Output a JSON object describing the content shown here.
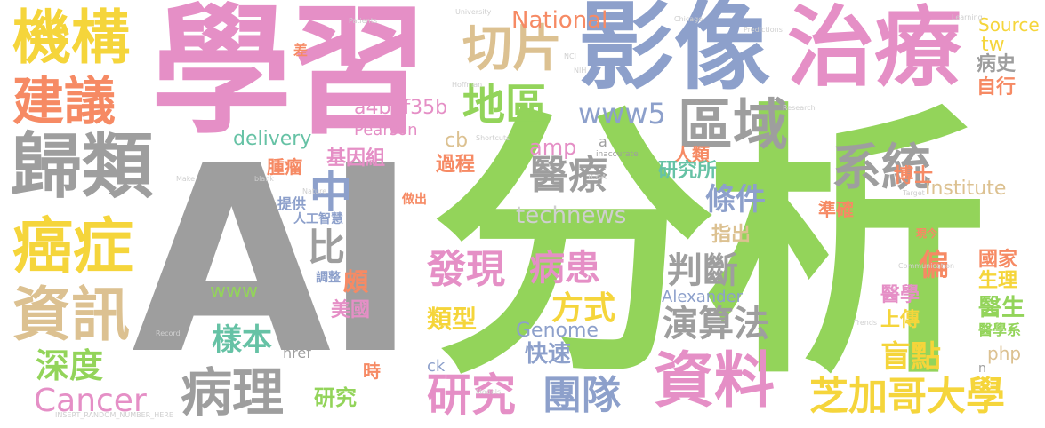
{
  "palette": {
    "gray": "#9e9e9e",
    "green": "#93d45a",
    "pink": "#e58fc6",
    "blue": "#8da0cb",
    "yellow": "#f5d53b",
    "tan": "#dcc191",
    "orange": "#f68a64",
    "teal": "#66c2a5",
    "faint_gray": "#cfcfcf"
  },
  "words": {
    "ai": "AI",
    "fenxi": "分析",
    "xuexi": "學習",
    "yingxiang": "影像",
    "zhiliao": "治療",
    "jigou": "機構",
    "jianyi": "建議",
    "guilei": "歸類",
    "aizheng": "癌症",
    "zixun": "資訊",
    "qupian": "切片",
    "quyu": "區域",
    "xitong": "系統",
    "yiliao": "醫療",
    "diqu": "地區",
    "zhong": "中",
    "bidui": "比對",
    "tiaojian": "條件",
    "fazhan": "發現",
    "bingren": "病患",
    "panduan": "判斷",
    "fangshi": "方式",
    "leixing": "類型",
    "yanshanfa": "演算法",
    "yangben": "樣本",
    "shendu": "深度",
    "bingli": "病理",
    "cancer": "Cancer",
    "yanjiu": "研究",
    "tuandui": "團隊",
    "ziliao": "資料",
    "mangdian": "盲點",
    "zhijiage": "芝加哥大學",
    "national": "National",
    "a4b": "a4b3f35b",
    "pearson": "Pearson",
    "delivery": "delivery",
    "www5": "www5",
    "cb": "cb",
    "amp": "amp",
    "technews": "technews",
    "institute": "Institute",
    "source": "Source",
    "tw": "tw",
    "bingshi": "病史",
    "zixing": "自行",
    "renlei": "人類",
    "zhongliu": "腫瘤",
    "jiyinzu": "基因組",
    "guocheng": "過程",
    "yanjiusuo": "研究所",
    "boshi": "博士",
    "zhunque": "準確",
    "tigong": "提供",
    "rengong": "人工智慧",
    "zhichu": "指出",
    "guojia": "國家",
    "pian": "偏",
    "shengli": "生理",
    "www": "www",
    "po": "頗",
    "meiguo": "美國",
    "yixue": "醫學",
    "yisheng": "醫生",
    "shangchuan": "上傳",
    "php": "php",
    "genome": "Genome",
    "alexander": "Alexander",
    "kuaisu": "快速",
    "href": "href",
    "ck": "ck",
    "shi": "時",
    "yanjiu2": "研究",
    "yixuexi": "醫學系",
    "xianjin": "現今",
    "zuochu": "做出",
    "tiaozheng": "調整",
    "cha": "差",
    "a": "a",
    "inaccurate": "inaccurate",
    "n": "n",
    "small_1": "INSERT_RANDOM_NUMBER_HERE",
    "small_2": "University",
    "small_3": "Learning",
    "small_4": "Patients",
    "small_5": "Predictions",
    "small_6": "Chicago",
    "small_7": "Research",
    "small_8": "Models",
    "small_9": "Shortcuts",
    "small_10": "Communication",
    "small_11": "Record",
    "small_12": "Make",
    "small_13": "blank",
    "small_14": "Nature",
    "small_15": "TCGA",
    "small_16": "NIH",
    "small_17": "NCI",
    "small_18": "Hoffman",
    "small_19": "Target",
    "small_20": "Trends"
  }
}
